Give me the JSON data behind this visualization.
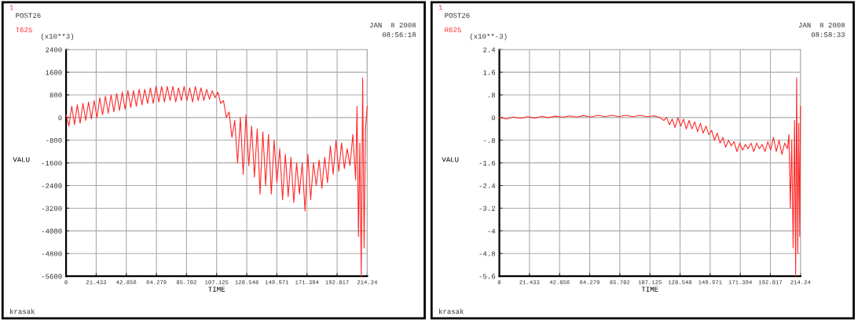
{
  "chart_data": [
    {
      "type": "line",
      "xlabel": "TIME",
      "ylabel": "VALU",
      "grid": true,
      "marker": "none",
      "line_style": "solid",
      "annotations": [
        "1",
        "POST26",
        "(x10**3)",
        "JAN  8 2008",
        "08:56:18",
        "krasak"
      ],
      "xlim": [
        0,
        214.24
      ],
      "ylim": [
        -5600,
        2400
      ],
      "xticks": [
        0,
        21.433,
        42.856,
        64.279,
        85.702,
        107.125,
        128.548,
        149.971,
        171.394,
        192.817,
        214.24
      ],
      "yticks": [
        -5600,
        -4800,
        -4000,
        -3200,
        -2400,
        -1600,
        -800,
        0,
        800,
        1600,
        2400
      ],
      "series": [
        {
          "name": "T625",
          "color": "#ff2a2a",
          "x": [
            0,
            2,
            4,
            6,
            8,
            10,
            12,
            14,
            16,
            18,
            20,
            22,
            24,
            26,
            28,
            30,
            32,
            34,
            36,
            38,
            40,
            42,
            44,
            46,
            48,
            50,
            52,
            54,
            56,
            58,
            60,
            62,
            64,
            66,
            68,
            70,
            72,
            74,
            76,
            78,
            80,
            82,
            84,
            86,
            88,
            90,
            92,
            94,
            96,
            98,
            100,
            102,
            104,
            106,
            108,
            110,
            112,
            114,
            116,
            118,
            120,
            122,
            124,
            126,
            128,
            130,
            132,
            134,
            136,
            138,
            140,
            142,
            144,
            146,
            148,
            150,
            152,
            154,
            156,
            158,
            160,
            162,
            164,
            166,
            168,
            170,
            172,
            174,
            176,
            178,
            180,
            182,
            184,
            186,
            188,
            190,
            192,
            194,
            196,
            198,
            200,
            202,
            204,
            206,
            207,
            208,
            209,
            210,
            211,
            212,
            213,
            214.24
          ],
          "values": [
            100,
            -300,
            400,
            -250,
            450,
            -200,
            500,
            -100,
            550,
            -50,
            600,
            0,
            700,
            100,
            750,
            150,
            800,
            200,
            850,
            250,
            900,
            300,
            950,
            350,
            950,
            400,
            1000,
            450,
            1000,
            500,
            1050,
            500,
            1100,
            550,
            1100,
            550,
            1100,
            600,
            1100,
            550,
            1050,
            600,
            1100,
            600,
            1050,
            550,
            1100,
            600,
            1050,
            600,
            1000,
            650,
            950,
            700,
            900,
            500,
            600,
            0,
            200,
            -700,
            -100,
            -1600,
            0,
            -2000,
            100,
            -1700,
            -300,
            -2100,
            -400,
            -2700,
            -500,
            -2400,
            -600,
            -2700,
            -800,
            -2300,
            -1100,
            -2900,
            -1300,
            -2800,
            -1400,
            -3000,
            -1600,
            -2700,
            -1600,
            -3300,
            -1300,
            -2900,
            -1600,
            -2400,
            -1500,
            -2500,
            -1400,
            -2300,
            -1000,
            -2000,
            -800,
            -1900,
            -900,
            -1800,
            -1100,
            -1700,
            -600,
            -2200,
            400,
            -4200,
            -900,
            -5600,
            1400,
            -4600,
            -400,
            400
          ]
        }
      ]
    },
    {
      "type": "line",
      "xlabel": "TIME",
      "ylabel": "VALU",
      "grid": true,
      "marker": "none",
      "line_style": "solid",
      "annotations": [
        "1",
        "POST26",
        "(x10**-3)",
        "JAN  8 2008",
        "08:58:33",
        "krasak"
      ],
      "xlim": [
        0,
        214.24
      ],
      "ylim": [
        -5.6,
        2.4
      ],
      "xticks": [
        0,
        21.433,
        42.856,
        64.279,
        85.702,
        107.125,
        128.548,
        149.971,
        171.394,
        192.817,
        214.24
      ],
      "yticks": [
        {
          "value": -5.6,
          "label": "-5.6"
        },
        {
          "value": -4.8,
          "label": "-4.8"
        },
        {
          "value": -4,
          "label": "-4"
        },
        {
          "value": -3.2,
          "label": "-3.2"
        },
        {
          "value": -2.4,
          "label": "-2.4"
        },
        {
          "value": -1.6,
          "label": "-1.6"
        },
        {
          "value": -0.8,
          "label": "-.8"
        },
        {
          "value": 0,
          "label": "0"
        },
        {
          "value": 0.8,
          "label": ".8"
        },
        {
          "value": 1.6,
          "label": "1.6"
        },
        {
          "value": 2.4,
          "label": "2.4"
        }
      ],
      "series": [
        {
          "name": "R625",
          "color": "#ff2a2a",
          "x": [
            0,
            5,
            10,
            15,
            20,
            25,
            30,
            35,
            40,
            45,
            50,
            55,
            60,
            65,
            70,
            75,
            80,
            85,
            90,
            95,
            100,
            105,
            110,
            114,
            117,
            119,
            121,
            123,
            125,
            127,
            129,
            131,
            133,
            135,
            137,
            139,
            141,
            143,
            145,
            147,
            149,
            151,
            153,
            155,
            157,
            159,
            161,
            163,
            165,
            167,
            169,
            171,
            173,
            175,
            177,
            179,
            181,
            183,
            185,
            187,
            189,
            191,
            193,
            195,
            197,
            199,
            201,
            203,
            205,
            206,
            207,
            208,
            209,
            210,
            210.8,
            211.5,
            212.3,
            213,
            213.7,
            214.24
          ],
          "values": [
            0,
            -0.05,
            0.02,
            -0.03,
            0.03,
            -0.02,
            0.04,
            0,
            0.05,
            0.01,
            0.06,
            0.02,
            0.07,
            0.02,
            0.08,
            0.03,
            0.08,
            0.03,
            0.08,
            0.03,
            0.08,
            0.03,
            0.06,
            0,
            -0.1,
            0,
            -0.25,
            -0.05,
            -0.35,
            0,
            -0.3,
            -0.05,
            -0.4,
            -0.1,
            -0.4,
            -0.15,
            -0.5,
            -0.2,
            -0.55,
            -0.3,
            -0.6,
            -0.45,
            -0.8,
            -0.55,
            -0.9,
            -0.7,
            -1.05,
            -0.8,
            -1,
            -0.85,
            -1.2,
            -0.9,
            -1.15,
            -0.95,
            -1.1,
            -0.9,
            -1.2,
            -0.9,
            -1.1,
            -0.95,
            -1.2,
            -0.85,
            -1.15,
            -0.7,
            -1.2,
            -0.8,
            -1.3,
            -0.9,
            -1.1,
            -0.6,
            -3.2,
            -0.8,
            -4.6,
            -0.1,
            -5.6,
            1.4,
            -4.8,
            -0.2,
            -4.2,
            0.4
          ]
        }
      ]
    }
  ]
}
